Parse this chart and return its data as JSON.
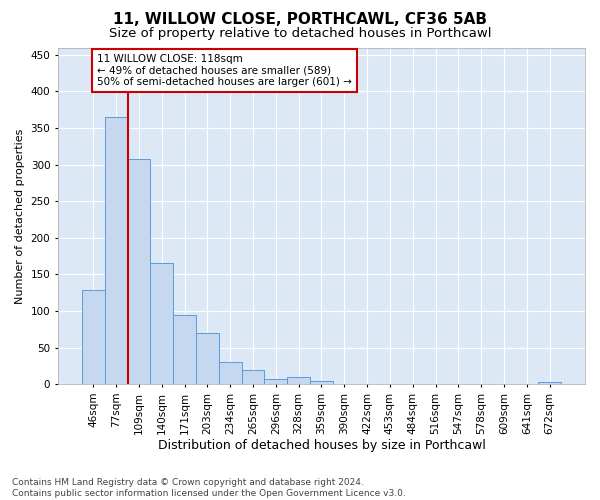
{
  "title1": "11, WILLOW CLOSE, PORTHCAWL, CF36 5AB",
  "title2": "Size of property relative to detached houses in Porthcawl",
  "xlabel": "Distribution of detached houses by size in Porthcawl",
  "ylabel": "Number of detached properties",
  "categories": [
    "46sqm",
    "77sqm",
    "109sqm",
    "140sqm",
    "171sqm",
    "203sqm",
    "234sqm",
    "265sqm",
    "296sqm",
    "328sqm",
    "359sqm",
    "390sqm",
    "422sqm",
    "453sqm",
    "484sqm",
    "516sqm",
    "547sqm",
    "578sqm",
    "609sqm",
    "641sqm",
    "672sqm"
  ],
  "values": [
    128,
    365,
    308,
    165,
    95,
    70,
    30,
    20,
    7,
    10,
    5,
    0,
    0,
    0,
    0,
    0,
    0,
    0,
    0,
    0,
    3
  ],
  "bar_color": "#c5d8f0",
  "bar_edge_color": "#5b9bd5",
  "background_color": "#dce8f5",
  "grid_color": "#ffffff",
  "vline_color": "#cc0000",
  "annotation_line1": "11 WILLOW CLOSE: 118sqm",
  "annotation_line2": "← 49% of detached houses are smaller (589)",
  "annotation_line3": "50% of semi-detached houses are larger (601) →",
  "annotation_box_color": "#ffffff",
  "annotation_box_edge": "#cc0000",
  "footnote": "Contains HM Land Registry data © Crown copyright and database right 2024.\nContains public sector information licensed under the Open Government Licence v3.0.",
  "ylim": [
    0,
    460
  ],
  "yticks": [
    0,
    50,
    100,
    150,
    200,
    250,
    300,
    350,
    400,
    450
  ],
  "title1_fontsize": 11,
  "title2_fontsize": 9.5,
  "xlabel_fontsize": 9,
  "ylabel_fontsize": 8,
  "tick_fontsize": 7.5,
  "annotation_fontsize": 7.5,
  "footnote_fontsize": 6.5
}
